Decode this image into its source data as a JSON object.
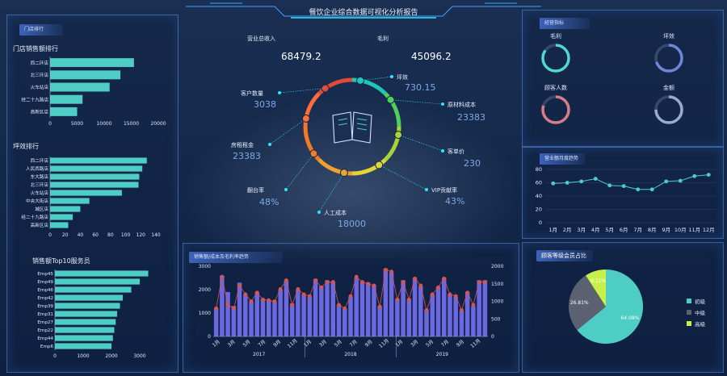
{
  "header": {
    "title": "餐饮企业综合数据可视化分析报告"
  },
  "left": {
    "panel_tag": "门店排行",
    "sales_rank": {
      "title": "门店销售额排行",
      "categories": [
        "西二环店",
        "北三环店",
        "火车站店",
        "经二十九路店",
        "高新区店"
      ],
      "values": [
        15500,
        13000,
        11000,
        6000,
        5000
      ],
      "xticks": [
        "0",
        "5000",
        "10000",
        "15000",
        "20000"
      ],
      "xmax": 20000
    },
    "ping_rank": {
      "title": "坪效排行",
      "categories": [
        "西二环店",
        "人民西路店",
        "东大路店",
        "北三环店",
        "火车站店",
        "中央大街店",
        "城区店",
        "经二十九路店",
        "高新区店"
      ],
      "values": [
        128,
        122,
        118,
        117,
        95,
        52,
        40,
        30,
        24
      ],
      "xticks": [
        "0",
        "20",
        "40",
        "60",
        "80",
        "100",
        "120",
        "140"
      ],
      "xmax": 140
    },
    "top10": {
      "title": "销售额Top10服务员",
      "categories": [
        "Emp45",
        "Emp49",
        "Emp46",
        "Emp42",
        "Emp39",
        "Emp31",
        "Emp27",
        "Emp22",
        "Emp44",
        "Emp6"
      ],
      "values": [
        3300,
        3000,
        2700,
        2400,
        2300,
        2200,
        2150,
        2100,
        2050,
        2000
      ],
      "xticks": [
        "0",
        "1000",
        "2000",
        "3000"
      ],
      "xmax": 3800
    }
  },
  "center": {
    "kpi": {
      "revenue_label": "营业总收入",
      "revenue_value": "68479.2",
      "profit_label": "毛利",
      "profit_value": "45096.2"
    },
    "ring_items": [
      {
        "label": "坪效",
        "value": "730.15"
      },
      {
        "label": "原材料成本",
        "value": "23383"
      },
      {
        "label": "客单价",
        "value": "230"
      },
      {
        "label": "VIP贡献率",
        "value": "43%"
      },
      {
        "label": "人工成本",
        "value": "18000"
      },
      {
        "label": "翻台率",
        "value": "48%"
      },
      {
        "label": "房租租金",
        "value": "23383"
      },
      {
        "label": "客户数量",
        "value": "3038"
      }
    ],
    "ring_colors": [
      "#1ec8b4",
      "#4fd05a",
      "#a8d43a",
      "#e0d63a",
      "#f0a030",
      "#f07a28",
      "#ff6a3a",
      "#e04a3a"
    ]
  },
  "bottom": {
    "panel_tag": "销售额/成本及毛利率趋势",
    "chart_data": {
      "type": "bar",
      "ylim_left": [
        0,
        3000
      ],
      "yticks_left": [
        "0",
        "1000",
        "2000",
        "3000"
      ],
      "ylim_right": [
        0,
        2000
      ],
      "yticks_right": [
        "0",
        "500",
        "1000",
        "1500",
        "2000"
      ],
      "month_ticks": [
        "1月",
        "3月",
        "5月",
        "7月",
        "9月",
        "11月",
        "1月",
        "3月",
        "5月",
        "7月",
        "9月",
        "11月",
        "1月",
        "3月",
        "5月",
        "7月",
        "9月",
        "11月"
      ],
      "years": [
        "2017",
        "2018",
        "2019"
      ],
      "values": [
        1200,
        2600,
        1900,
        1300,
        2300,
        1800,
        1500,
        1900,
        1600,
        1550,
        1500,
        2000,
        2400,
        1400,
        2000,
        1800,
        1700,
        2450,
        2150,
        2400,
        2350,
        1350,
        1200,
        1700,
        2500,
        2350,
        2300,
        2200,
        1300,
        2900,
        2750,
        1600,
        2400,
        1600,
        2500,
        2150,
        1150,
        1800,
        2100,
        2500,
        1800,
        1700,
        1100,
        1900,
        1300,
        2400,
        2400
      ],
      "line": [
        800,
        1700,
        900,
        800,
        1450,
        1200,
        1000,
        1250,
        1050,
        1030,
        1000,
        1350,
        1600,
        900,
        1350,
        1200,
        1150,
        1600,
        1400,
        1550,
        1550,
        900,
        800,
        1150,
        1700,
        1550,
        1500,
        1450,
        850,
        1900,
        1850,
        1050,
        1550,
        1050,
        1650,
        1450,
        750,
        1200,
        1400,
        1650,
        1200,
        1150,
        750,
        1250,
        900,
        1550,
        1550
      ]
    }
  },
  "right": {
    "panel_tag": "经营指标",
    "rings": [
      {
        "label": "毛利",
        "color": "#4fd8cc",
        "pct": 0.85
      },
      {
        "label": "坪效",
        "color": "#6f86d8",
        "pct": 0.7
      },
      {
        "label": "顾客人数",
        "color": "#d97c86",
        "pct": 0.8
      },
      {
        "label": "金额",
        "color": "#9aaccc",
        "pct": 0.75
      }
    ],
    "line_tag": "营业额月度趋势",
    "line_chart": {
      "type": "line",
      "categories": [
        "1月",
        "2月",
        "3月",
        "4月",
        "5月",
        "6月",
        "7月",
        "8月",
        "9月",
        "10月",
        "11月",
        "12月"
      ],
      "values": [
        59,
        60,
        62,
        66,
        56,
        55,
        50,
        50,
        62,
        63,
        70,
        72
      ],
      "yticks": [
        "0",
        "20",
        "40",
        "60",
        "80"
      ],
      "ymax": 80
    },
    "pie_tag": "顾客等级会员占比",
    "pie_chart": {
      "type": "pie",
      "slices": [
        {
          "name": "初级",
          "value": 64.08,
          "label": "64.08%",
          "color": "#4ecdc4"
        },
        {
          "name": "中级",
          "value": 26.81,
          "label": "26.81%",
          "color": "#5b6170"
        },
        {
          "name": "高级",
          "value": 9.11,
          "label": "9.11%",
          "color": "#c9f04a"
        }
      ]
    }
  }
}
